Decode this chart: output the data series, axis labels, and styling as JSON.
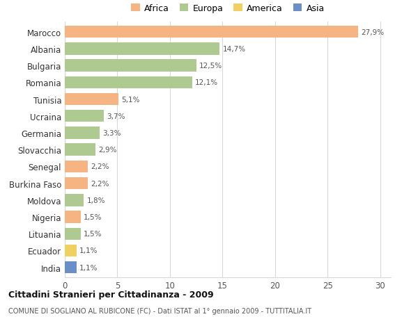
{
  "countries": [
    "Marocco",
    "Albania",
    "Bulgaria",
    "Romania",
    "Tunisia",
    "Ucraina",
    "Germania",
    "Slovacchia",
    "Senegal",
    "Burkina Faso",
    "Moldova",
    "Nigeria",
    "Lituania",
    "Ecuador",
    "India"
  ],
  "values": [
    27.9,
    14.7,
    12.5,
    12.1,
    5.1,
    3.7,
    3.3,
    2.9,
    2.2,
    2.2,
    1.8,
    1.5,
    1.5,
    1.1,
    1.1
  ],
  "labels": [
    "27,9%",
    "14,7%",
    "12,5%",
    "12,1%",
    "5,1%",
    "3,7%",
    "3,3%",
    "2,9%",
    "2,2%",
    "2,2%",
    "1,8%",
    "1,5%",
    "1,5%",
    "1,1%",
    "1,1%"
  ],
  "continents": [
    "Africa",
    "Europa",
    "Europa",
    "Europa",
    "Africa",
    "Europa",
    "Europa",
    "Europa",
    "Africa",
    "Africa",
    "Europa",
    "Africa",
    "Europa",
    "America",
    "Asia"
  ],
  "colors": {
    "Africa": "#F5B482",
    "Europa": "#AECA91",
    "America": "#F0D060",
    "Asia": "#6A8FC8"
  },
  "title": "Cittadini Stranieri per Cittadinanza - 2009",
  "subtitle": "COMUNE DI SOGLIANO AL RUBICONE (FC) - Dati ISTAT al 1° gennaio 2009 - TUTTITALIA.IT",
  "xlim": [
    0,
    31
  ],
  "xticks": [
    0,
    5,
    10,
    15,
    20,
    25,
    30
  ],
  "background_color": "#ffffff",
  "grid_color": "#d8d8d8"
}
